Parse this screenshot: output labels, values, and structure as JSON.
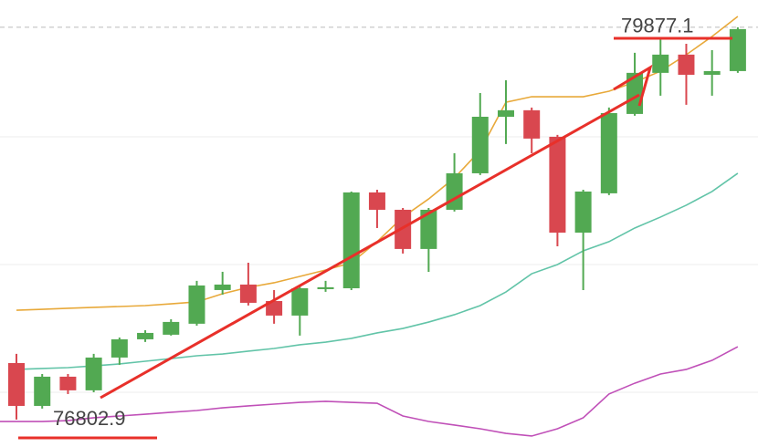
{
  "chart_data": {
    "type": "candlestick",
    "ylim": [
      76588,
      80091
    ],
    "up_color": "#52a952",
    "down_color": "#d9474f",
    "candles": [
      {
        "open": 77246,
        "close": 76910,
        "high": 77318,
        "low": 76803
      },
      {
        "open": 76910,
        "close": 77139,
        "high": 77160,
        "low": 76889
      },
      {
        "open": 77139,
        "close": 77032,
        "high": 77160,
        "low": 77003
      },
      {
        "open": 77032,
        "close": 77289,
        "high": 77318,
        "low": 77017
      },
      {
        "open": 77289,
        "close": 77432,
        "high": 77446,
        "low": 77232
      },
      {
        "open": 77432,
        "close": 77482,
        "high": 77503,
        "low": 77411
      },
      {
        "open": 77468,
        "close": 77568,
        "high": 77589,
        "low": 77461
      },
      {
        "open": 77554,
        "close": 77854,
        "high": 77890,
        "low": 77539
      },
      {
        "open": 77818,
        "close": 77861,
        "high": 77961,
        "low": 77782
      },
      {
        "open": 77861,
        "close": 77718,
        "high": 78032,
        "low": 77697
      },
      {
        "open": 77732,
        "close": 77618,
        "high": 77818,
        "low": 77554
      },
      {
        "open": 77618,
        "close": 77832,
        "high": 77861,
        "low": 77461
      },
      {
        "open": 77825,
        "close": 77840,
        "high": 77890,
        "low": 77804
      },
      {
        "open": 77832,
        "close": 78583,
        "high": 78590,
        "low": 77818
      },
      {
        "open": 78583,
        "close": 78447,
        "high": 78604,
        "low": 78304
      },
      {
        "open": 78447,
        "close": 78140,
        "high": 78461,
        "low": 78104
      },
      {
        "open": 78140,
        "close": 78447,
        "high": 78461,
        "low": 77961
      },
      {
        "open": 78447,
        "close": 78733,
        "high": 78890,
        "low": 78433
      },
      {
        "open": 78733,
        "close": 79176,
        "high": 79362,
        "low": 78719
      },
      {
        "open": 79176,
        "close": 79227,
        "high": 79462,
        "low": 78962
      },
      {
        "open": 79227,
        "close": 79005,
        "high": 79248,
        "low": 78890
      },
      {
        "open": 79019,
        "close": 78268,
        "high": 79034,
        "low": 78161
      },
      {
        "open": 78268,
        "close": 78590,
        "high": 78604,
        "low": 77818
      },
      {
        "open": 78576,
        "close": 79205,
        "high": 79248,
        "low": 78562
      },
      {
        "open": 79198,
        "close": 79520,
        "high": 79677,
        "low": 79184
      },
      {
        "open": 79520,
        "close": 79663,
        "high": 79791,
        "low": 79341
      },
      {
        "open": 79663,
        "close": 79505,
        "high": 79748,
        "low": 79270
      },
      {
        "open": 79505,
        "close": 79534,
        "high": 79698,
        "low": 79341
      },
      {
        "open": 79534,
        "close": 79863,
        "high": 79877,
        "low": 79520
      }
    ],
    "series": [
      {
        "color": "#e8a93a",
        "values": [
          77660,
          77667,
          77675,
          77682,
          77689,
          77696,
          77710,
          77725,
          77789,
          77839,
          77875,
          77925,
          77975,
          78032,
          78197,
          78390,
          78532,
          78697,
          78911,
          79290,
          79333,
          79333,
          79333,
          79376,
          79448,
          79533,
          79662,
          79805,
          79962
        ]
      },
      {
        "color": "#62c4a8",
        "values": [
          77196,
          77203,
          77210,
          77224,
          77239,
          77260,
          77281,
          77303,
          77317,
          77339,
          77360,
          77389,
          77410,
          77439,
          77482,
          77517,
          77567,
          77625,
          77696,
          77803,
          77946,
          78018,
          78125,
          78197,
          78304,
          78390,
          78483,
          78590,
          78733
        ]
      },
      {
        "color": "#c050b8",
        "values": [
          76788,
          76788,
          76795,
          76817,
          76831,
          76845,
          76860,
          76874,
          76895,
          76910,
          76924,
          76938,
          76946,
          76938,
          76931,
          76831,
          76788,
          76760,
          76731,
          76695,
          76674,
          76731,
          76817,
          77003,
          77088,
          77160,
          77196,
          77267,
          77374
        ]
      }
    ],
    "annotations": [
      {
        "value": 76802.9,
        "label": "76802.9"
      },
      {
        "value": 79877.1,
        "label": "79877.1"
      }
    ]
  }
}
